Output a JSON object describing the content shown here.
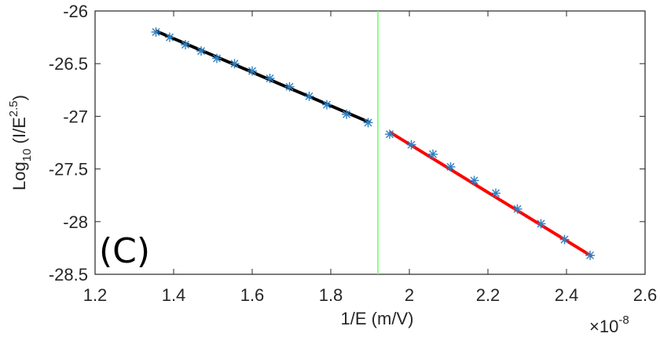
{
  "chart_data": {
    "type": "scatter",
    "xlabel": "1/E (m/V)",
    "ylabel": {
      "base": "Log",
      "sub": "10",
      "paren_open": " (I/E",
      "sup": "2.5",
      "paren_close": ")"
    },
    "x_exponent": {
      "base": "×10",
      "sup": "-8"
    },
    "panel_label": "(C)",
    "xlim": [
      1.2,
      2.6
    ],
    "ylim": [
      -28.5,
      -26
    ],
    "xticks": [
      1.2,
      1.4,
      1.6,
      1.8,
      2.0,
      2.2,
      2.4,
      2.6
    ],
    "xtick_labels": [
      "1.2",
      "1.4",
      "1.6",
      "1.8",
      "2",
      "2.2",
      "2.4",
      "2.6"
    ],
    "yticks": [
      -26,
      -26.5,
      -27,
      -27.5,
      -28,
      -28.5
    ],
    "ytick_labels": [
      "-26",
      "-26.5",
      "-27",
      "-27.5",
      "-28",
      "-28.5"
    ],
    "vline_x": 1.92,
    "colors": {
      "points": "#2f7fc1",
      "fit_left": "#000000",
      "fit_right": "#ff0000",
      "vline": "#66ff66"
    },
    "series": [
      {
        "x": [
          1.355,
          1.39,
          1.43,
          1.47,
          1.51,
          1.555,
          1.6,
          1.645,
          1.695,
          1.745,
          1.79,
          1.84,
          1.895,
          1.95,
          2.005,
          2.06,
          2.105,
          2.165,
          2.22,
          2.275,
          2.335,
          2.395,
          2.46
        ],
        "y": [
          -26.2,
          -26.25,
          -26.32,
          -26.38,
          -26.45,
          -26.5,
          -26.57,
          -26.64,
          -26.72,
          -26.81,
          -26.89,
          -26.98,
          -27.06,
          -27.17,
          -27.27,
          -27.36,
          -27.48,
          -27.61,
          -27.73,
          -27.88,
          -28.02,
          -28.17,
          -28.32
        ]
      }
    ],
    "fits": [
      {
        "x": [
          1.355,
          1.9
        ],
        "y": [
          -26.19,
          -27.06
        ]
      },
      {
        "x": [
          1.95,
          2.465
        ],
        "y": [
          -27.15,
          -28.33
        ]
      }
    ]
  }
}
